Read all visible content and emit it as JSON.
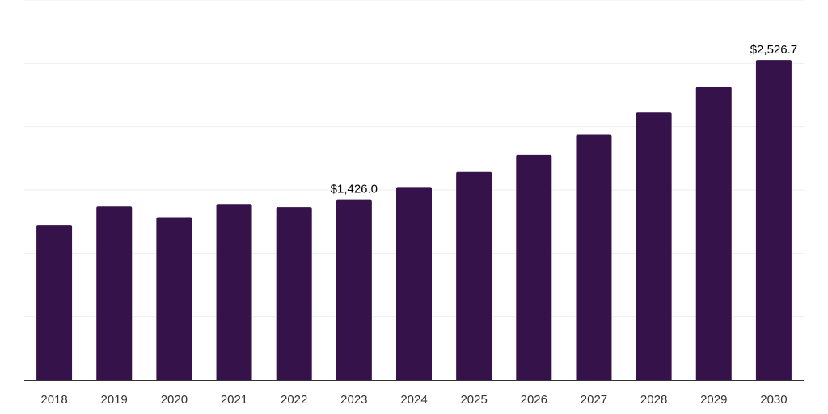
{
  "chart_data": {
    "type": "bar",
    "categories": [
      "2018",
      "2019",
      "2020",
      "2021",
      "2022",
      "2023",
      "2024",
      "2025",
      "2026",
      "2027",
      "2028",
      "2029",
      "2030"
    ],
    "values": [
      1224.5,
      1370.8,
      1286.4,
      1390.2,
      1365.3,
      1426.0,
      1523.5,
      1642.2,
      1775.5,
      1937.5,
      2111.0,
      2314.1,
      2526.7
    ],
    "data_labels": [
      {
        "index": 5,
        "text": "$1,426.0"
      },
      {
        "index": 12,
        "text": "$2,526.7"
      }
    ],
    "title": "",
    "xlabel": "",
    "ylabel": "",
    "ylim": [
      0,
      3000
    ],
    "grid": true,
    "legend": "none",
    "colors": {
      "bar": "#36124a",
      "grid": "#eeeeee",
      "axis": "#333333"
    }
  }
}
